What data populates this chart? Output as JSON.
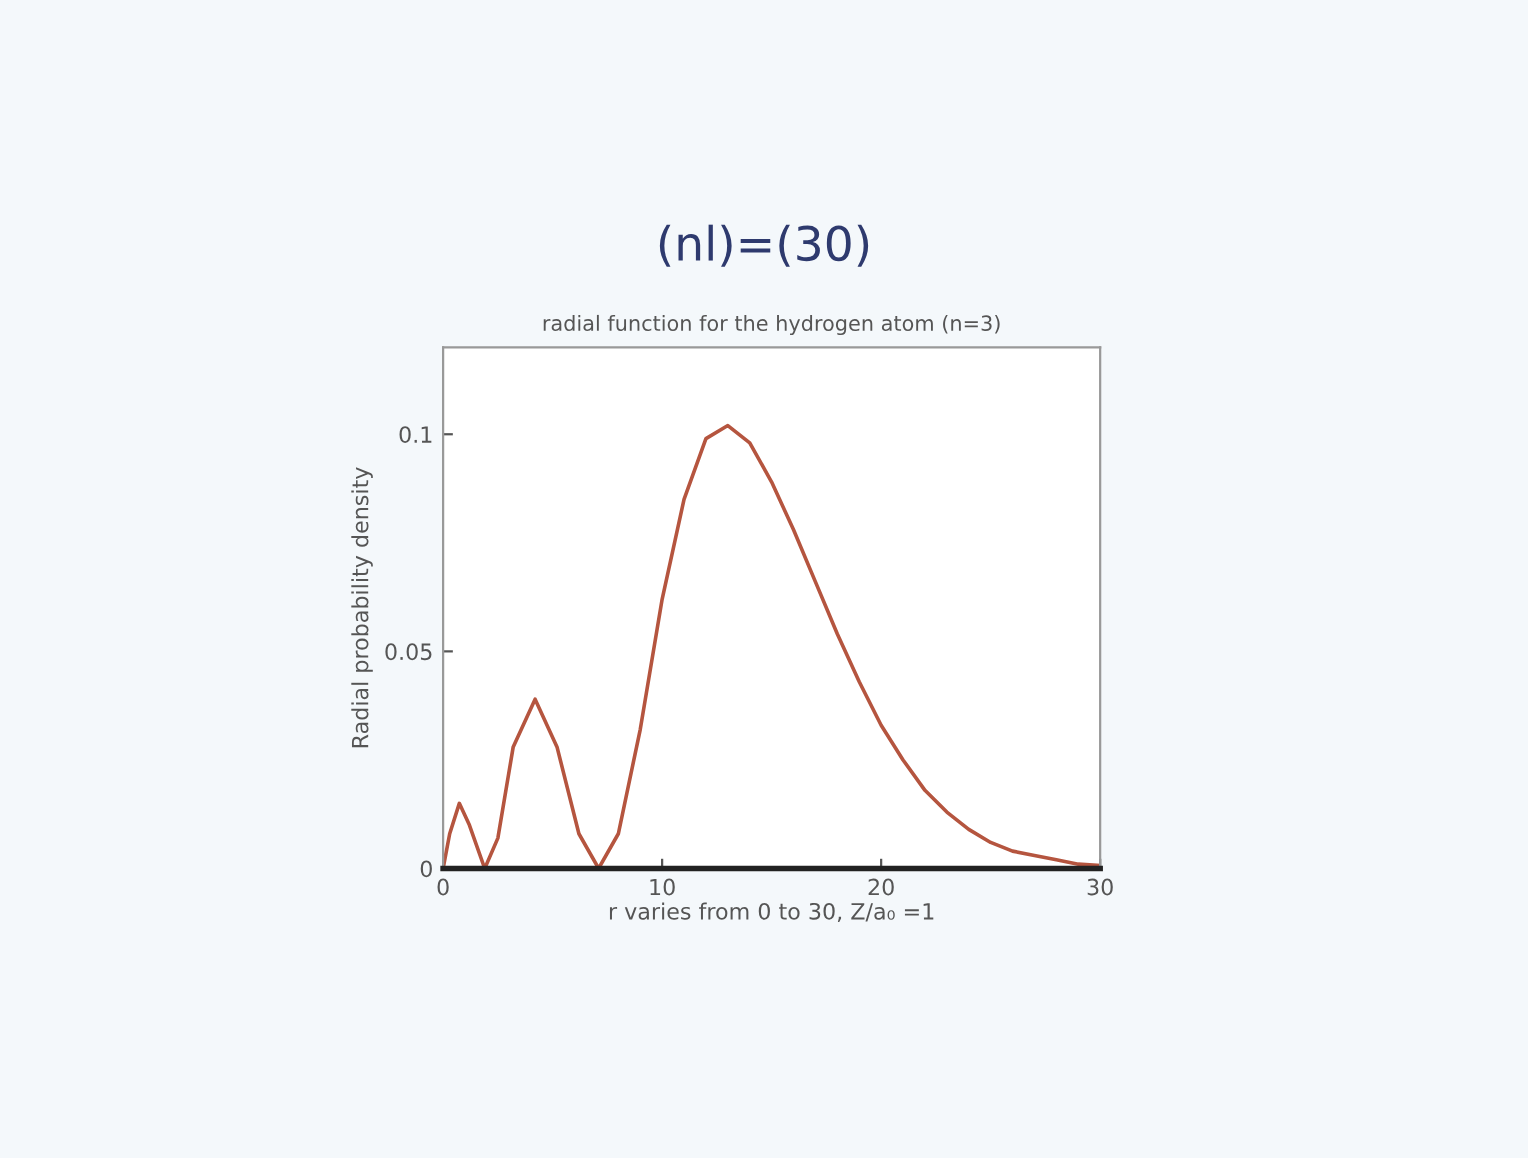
{
  "chart_data": {
    "type": "line",
    "title": "(nl)=(30)",
    "subtitle": "radial function for the hydrogen atom (n=3)",
    "xlabel": "r varies from 0 to 30, Z/a₀ =1",
    "ylabel": "Radial probability density",
    "series": [
      {
        "color": "#b5553f",
        "x": [
          0,
          0.3,
          0.74,
          1.2,
          1.9,
          2.5,
          3.2,
          4.2,
          5.2,
          6.2,
          7.1,
          8,
          9,
          10,
          11,
          12,
          13,
          14,
          15,
          16,
          17,
          18,
          19,
          20,
          21,
          22,
          23,
          24,
          25,
          26,
          27,
          28,
          29,
          30
        ],
        "values": [
          0,
          0.008,
          0.015,
          0.01,
          0,
          0.007,
          0.028,
          0.039,
          0.028,
          0.008,
          0,
          0.008,
          0.032,
          0.062,
          0.085,
          0.099,
          0.102,
          0.098,
          0.089,
          0.078,
          0.066,
          0.054,
          0.043,
          0.033,
          0.025,
          0.018,
          0.013,
          0.009,
          0.006,
          0.004,
          0.003,
          0.002,
          0.001,
          0.0007
        ]
      }
    ],
    "xlim": [
      0,
      30
    ],
    "xticks": [
      0,
      10,
      20,
      30
    ],
    "ylim": [
      0,
      0.12
    ],
    "yticks": [
      0,
      0.05,
      0.1
    ],
    "grid": false,
    "marker": "none",
    "line_style": "solid"
  }
}
